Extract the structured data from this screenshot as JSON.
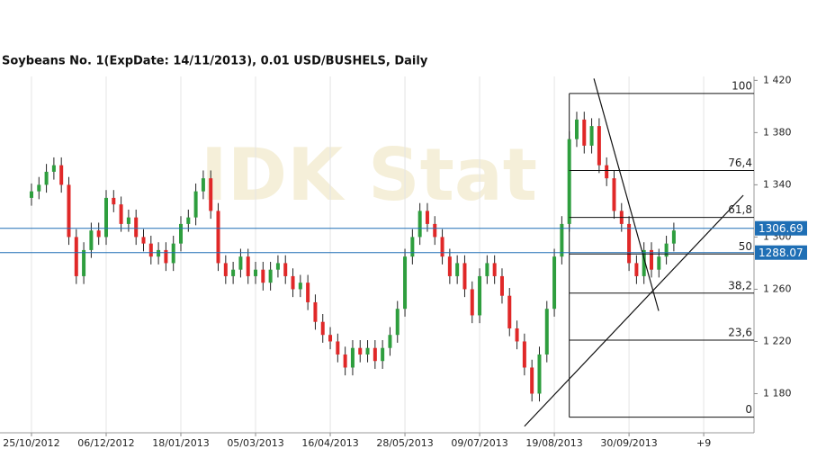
{
  "chart_data": {
    "type": "candlestick",
    "title": "Soybeans  No. 1(ExpDate: 14/11/2013), 0.01 USD/BUSHELS, Daily",
    "watermark": "IDK Stat",
    "x": [
      0,
      3,
      6,
      9,
      12,
      15,
      18,
      21,
      24,
      27,
      30,
      33,
      36,
      39,
      42,
      45,
      48,
      51,
      54,
      57,
      60,
      63,
      66,
      69,
      72,
      75,
      78,
      81,
      84,
      87,
      90,
      93,
      96,
      99,
      102,
      105,
      108,
      111,
      114,
      117,
      120,
      123,
      126,
      129,
      132,
      135,
      138,
      141,
      144,
      147,
      150,
      153,
      156,
      159,
      162,
      165,
      168,
      171,
      174,
      177,
      180,
      183,
      186,
      189,
      192,
      195,
      198,
      201,
      204,
      207,
      210,
      213,
      216,
      219,
      222,
      225,
      228,
      231,
      234,
      237,
      240,
      243,
      246,
      249,
      252,
      255,
      258
    ],
    "open": [
      1330,
      1335,
      1340,
      1350,
      1355,
      1340,
      1300,
      1270,
      1290,
      1305,
      1300,
      1330,
      1325,
      1310,
      1315,
      1300,
      1295,
      1285,
      1290,
      1280,
      1295,
      1310,
      1315,
      1335,
      1345,
      1320,
      1280,
      1270,
      1275,
      1285,
      1270,
      1275,
      1265,
      1275,
      1280,
      1270,
      1260,
      1265,
      1250,
      1235,
      1225,
      1220,
      1210,
      1200,
      1215,
      1210,
      1215,
      1205,
      1215,
      1225,
      1245,
      1285,
      1300,
      1320,
      1310,
      1300,
      1285,
      1270,
      1280,
      1260,
      1240,
      1270,
      1280,
      1270,
      1255,
      1230,
      1220,
      1200,
      1180,
      1210,
      1245,
      1285,
      1310,
      1375,
      1390,
      1370,
      1385,
      1355,
      1345,
      1320,
      1310,
      1280,
      1270,
      1290,
      1275,
      1285,
      1295
    ],
    "high": [
      1341,
      1346,
      1356,
      1361,
      1361,
      1346,
      1306,
      1296,
      1311,
      1311,
      1336,
      1336,
      1331,
      1321,
      1321,
      1306,
      1301,
      1296,
      1296,
      1301,
      1316,
      1321,
      1341,
      1351,
      1351,
      1326,
      1286,
      1281,
      1291,
      1291,
      1281,
      1281,
      1281,
      1286,
      1286,
      1276,
      1271,
      1271,
      1256,
      1241,
      1231,
      1226,
      1216,
      1221,
      1221,
      1221,
      1221,
      1221,
      1231,
      1251,
      1291,
      1306,
      1326,
      1326,
      1316,
      1306,
      1291,
      1286,
      1286,
      1266,
      1276,
      1286,
      1286,
      1276,
      1261,
      1236,
      1226,
      1206,
      1216,
      1251,
      1291,
      1316,
      1381,
      1396,
      1396,
      1391,
      1391,
      1361,
      1351,
      1326,
      1316,
      1286,
      1296,
      1296,
      1291,
      1301,
      1311
    ],
    "low": [
      1324,
      1329,
      1334,
      1344,
      1334,
      1294,
      1264,
      1264,
      1284,
      1294,
      1294,
      1319,
      1304,
      1304,
      1294,
      1289,
      1279,
      1279,
      1274,
      1274,
      1289,
      1304,
      1309,
      1329,
      1314,
      1274,
      1264,
      1264,
      1269,
      1264,
      1264,
      1259,
      1259,
      1269,
      1264,
      1254,
      1254,
      1244,
      1229,
      1219,
      1214,
      1204,
      1194,
      1194,
      1204,
      1204,
      1199,
      1199,
      1209,
      1219,
      1239,
      1279,
      1294,
      1304,
      1294,
      1279,
      1264,
      1264,
      1254,
      1234,
      1234,
      1264,
      1264,
      1249,
      1224,
      1214,
      1194,
      1174,
      1174,
      1204,
      1239,
      1279,
      1304,
      1369,
      1364,
      1364,
      1349,
      1339,
      1314,
      1304,
      1274,
      1264,
      1264,
      1269,
      1269,
      1279,
      1289
    ],
    "close": [
      1335,
      1340,
      1350,
      1355,
      1340,
      1300,
      1270,
      1290,
      1305,
      1300,
      1330,
      1325,
      1310,
      1315,
      1300,
      1295,
      1285,
      1290,
      1280,
      1295,
      1310,
      1315,
      1335,
      1345,
      1320,
      1280,
      1270,
      1275,
      1285,
      1270,
      1275,
      1265,
      1275,
      1280,
      1270,
      1260,
      1265,
      1250,
      1235,
      1225,
      1220,
      1210,
      1200,
      1215,
      1210,
      1215,
      1205,
      1215,
      1225,
      1245,
      1285,
      1300,
      1320,
      1310,
      1300,
      1285,
      1270,
      1280,
      1260,
      1240,
      1270,
      1280,
      1270,
      1255,
      1230,
      1220,
      1200,
      1180,
      1210,
      1245,
      1285,
      1310,
      1375,
      1390,
      1370,
      1385,
      1355,
      1345,
      1320,
      1310,
      1280,
      1270,
      1290,
      1275,
      1285,
      1295,
      1305
    ],
    "up_color": "#2e9e3e",
    "down_color": "#e02828",
    "xlim": [
      -1.8,
      290.2
    ],
    "xticks": [
      {
        "value": 0,
        "label": "25/10/2012"
      },
      {
        "value": 30,
        "label": "06/12/2012"
      },
      {
        "value": 60,
        "label": "18/01/2013"
      },
      {
        "value": 90,
        "label": "05/03/2013"
      },
      {
        "value": 120,
        "label": "16/04/2013"
      },
      {
        "value": 150,
        "label": "28/05/2013"
      },
      {
        "value": 180,
        "label": "09/07/2013"
      },
      {
        "value": 210,
        "label": "19/08/2013"
      },
      {
        "value": 240,
        "label": "30/09/2013"
      },
      {
        "value": 270,
        "label": "+9"
      }
    ],
    "ylim": [
      1150,
      1423
    ],
    "yticks": [
      {
        "value": 1180,
        "label": "1 180"
      },
      {
        "value": 1220,
        "label": "1 220"
      },
      {
        "value": 1260,
        "label": "1 260"
      },
      {
        "value": 1300,
        "label": "1 300"
      },
      {
        "value": 1340,
        "label": "1 340"
      },
      {
        "value": 1380,
        "label": "1 380"
      },
      {
        "value": 1420,
        "label": "1 420"
      }
    ],
    "grid": true,
    "price_lines": [
      1306.69,
      1288.07
    ],
    "price_line_color": "#1f6fb5",
    "fib_start": 216,
    "fib_levels": [
      {
        "value": 1410,
        "label": "100"
      },
      {
        "value": 1351,
        "label": "76,4"
      },
      {
        "value": 1315,
        "label": "61,8"
      },
      {
        "value": 1287,
        "label": "50"
      },
      {
        "value": 1257,
        "label": "38,2"
      },
      {
        "value": 1221,
        "label": "23,6"
      },
      {
        "value": 1162,
        "label": "0"
      }
    ],
    "trendlines": [
      {
        "x": [
          225.9,
          251.9
        ],
        "y": [
          1421.4,
          1243.4
        ]
      },
      {
        "x": [
          198,
          285.9
        ],
        "y": [
          1155,
          1332
        ]
      }
    ]
  }
}
